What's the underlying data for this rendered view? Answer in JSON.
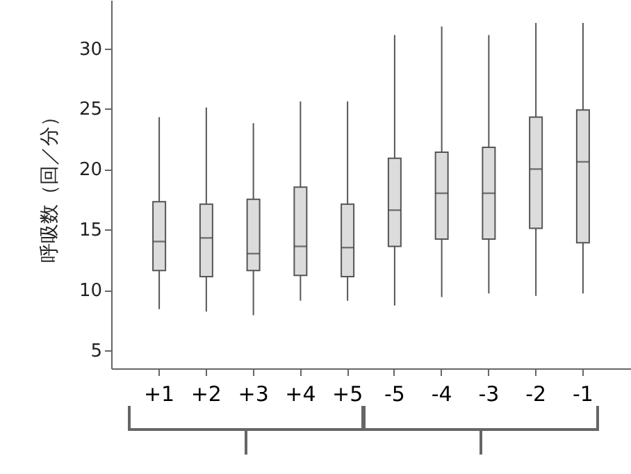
{
  "chart_data": {
    "type": "box",
    "ylabel": "呼吸数（回／分）",
    "categories": [
      "+1",
      "+2",
      "+3",
      "+4",
      "+5",
      "-5",
      "-4",
      "-3",
      "-2",
      "-1"
    ],
    "boxes": [
      {
        "low": 8.4,
        "q1": 11.6,
        "median": 14.0,
        "q3": 17.3,
        "high": 24.3
      },
      {
        "low": 8.2,
        "q1": 11.1,
        "median": 14.3,
        "q3": 17.1,
        "high": 25.1
      },
      {
        "low": 7.9,
        "q1": 11.6,
        "median": 13.0,
        "q3": 17.5,
        "high": 23.8
      },
      {
        "low": 9.1,
        "q1": 11.2,
        "median": 13.6,
        "q3": 18.5,
        "high": 25.6
      },
      {
        "low": 9.1,
        "q1": 11.1,
        "median": 13.5,
        "q3": 17.1,
        "high": 25.6
      },
      {
        "low": 8.7,
        "q1": 13.6,
        "median": 16.6,
        "q3": 20.9,
        "high": 31.1
      },
      {
        "low": 9.4,
        "q1": 14.2,
        "median": 18.0,
        "q3": 21.4,
        "high": 31.8
      },
      {
        "low": 9.7,
        "q1": 14.2,
        "median": 18.0,
        "q3": 21.8,
        "high": 31.1
      },
      {
        "low": 9.5,
        "q1": 15.1,
        "median": 20.0,
        "q3": 24.3,
        "high": 32.1
      },
      {
        "low": 9.7,
        "q1": 13.9,
        "median": 20.6,
        "q3": 24.9,
        "high": 32.1
      }
    ],
    "color": "#dcdcdc",
    "ylim": [
      3.5,
      34
    ],
    "yticks": [
      5,
      10,
      15,
      20,
      25,
      30
    ],
    "grid": false
  }
}
